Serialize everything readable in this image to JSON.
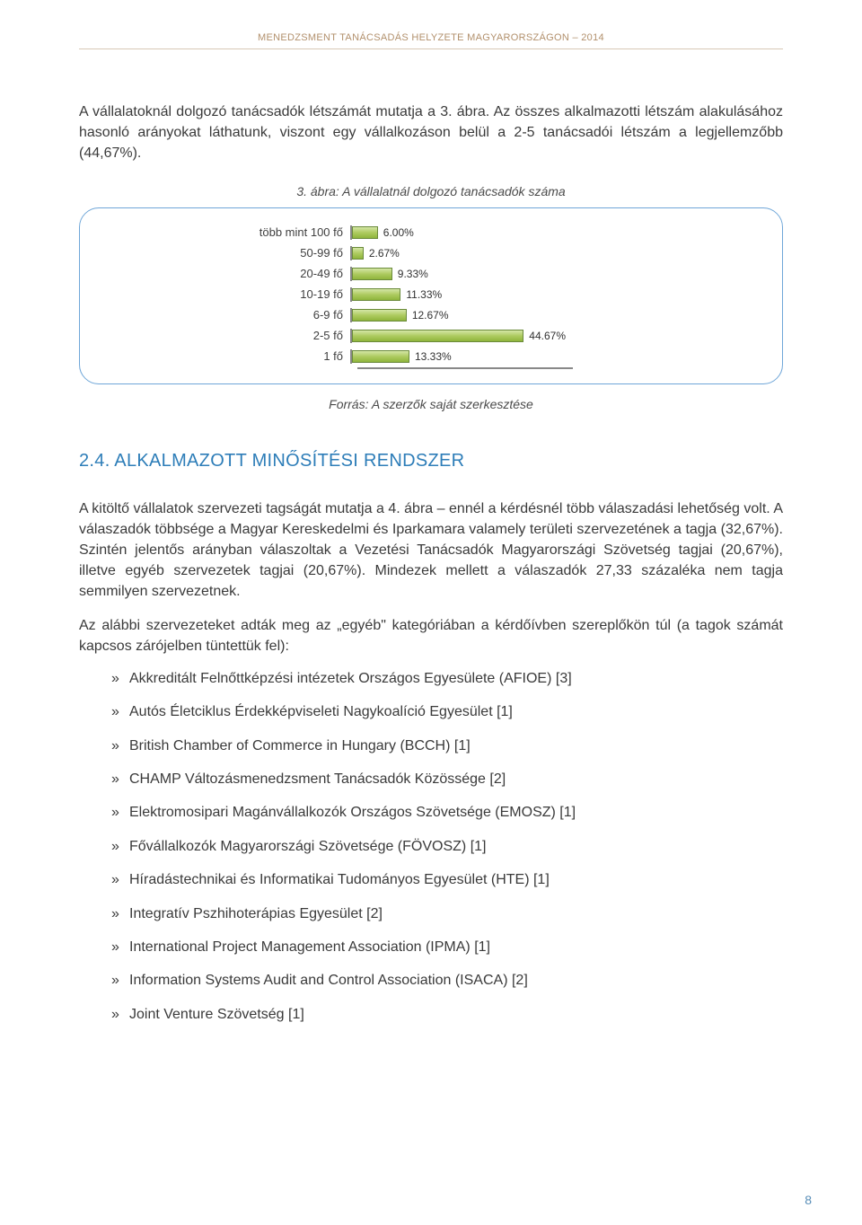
{
  "header": "MENEDZSMENT TANÁCSADÁS HELYZETE MAGYARORSZÁGON – 2014",
  "intro_para": "A vállalatoknál dolgozó tanácsadók létszámát mutatja a 3. ábra. Az összes alkalmazotti létszám alakulásához hasonló arányokat láthatunk, viszont egy vállalkozáson belül a 2-5 tanácsadói létszám a legjellemzőbb (44,67%).",
  "fig_caption": "3. ábra: A vállalatnál dolgozó tanácsadók száma",
  "src_caption": "Forrás: A szerzők saját szerkesztése",
  "chart": {
    "type": "bar-horizontal",
    "max_value": 50,
    "bar_fill_color": "linear-gradient(to bottom, #d4e6a6 0%, #aecb60 50%, #8fb53c 100%)",
    "bar_border_color": "#6a8a3a",
    "axis_color": "#888888",
    "label_fontsize": 13,
    "value_fontsize": 12,
    "rows": [
      {
        "category": "több mint 100 fő",
        "value": 6.0,
        "label": "6.00%"
      },
      {
        "category": "50-99 fő",
        "value": 2.67,
        "label": "2.67%"
      },
      {
        "category": "20-49 fő",
        "value": 9.33,
        "label": "9.33%"
      },
      {
        "category": "10-19 fő",
        "value": 11.33,
        "label": "11.33%"
      },
      {
        "category": "6-9 fő",
        "value": 12.67,
        "label": "12.67%"
      },
      {
        "category": "2-5 fő",
        "value": 44.67,
        "label": "44.67%"
      },
      {
        "category": "1 fő",
        "value": 13.33,
        "label": "13.33%"
      }
    ]
  },
  "section_heading": "2.4. ALKALMAZOTT MINŐSÍTÉSI RENDSZER",
  "body_p1": "A kitöltő vállalatok szervezeti tagságát mutatja a 4. ábra – ennél a kérdésnél több válaszadási lehetőség volt. A válaszadók többsége a Magyar Kereskedelmi és Iparkamara valamely területi szervezetének a tagja (32,67%). Szintén jelentős arányban válaszoltak a Vezetési Tanácsadók Magyarországi Szövetség tagjai (20,67%), illetve egyéb szervezetek tagjai (20,67%). Mindezek mellett a válaszadók 27,33 százaléka nem tagja semmilyen szervezetnek.",
  "body_p2": "Az alábbi szervezeteket adták meg az „egyéb\" kategóriában a kérdőívben szereplőkön túl (a tagok számát kapcsos zárójelben tüntettük fel):",
  "org_list": [
    "Akkreditált Felnőttképzési intézetek Országos Egyesülete (AFIOE) [3]",
    "Autós Életciklus Érdekképviseleti Nagykoalíció Egyesület [1]",
    "British Chamber of Commerce in Hungary (BCCH) [1]",
    "CHAMP Változásmenedzsment Tanácsadók Közössége [2]",
    "Elektromosipari Magánvállalkozók Országos Szövetsége (EMOSZ) [1]",
    "Fővállalkozók Magyarországi Szövetsége (FÖVOSZ) [1]",
    "Híradástechnikai és Informatikai Tudományos Egyesület (HTE) [1]",
    "Integratív Pszhihoterápias Egyesület [2]",
    "International Project Management Association (IPMA) [1]",
    "Information Systems Audit and Control Association (ISACA) [2]",
    "Joint Venture Szövetség [1]"
  ],
  "page_number": "8"
}
